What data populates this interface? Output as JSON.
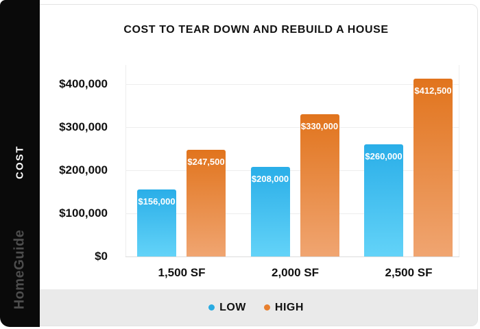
{
  "sidebar": {
    "axis_label": "COST",
    "brand": "HomeGuide"
  },
  "chart_data": {
    "type": "bar",
    "title": "COST TO TEAR DOWN AND REBUILD A HOUSE",
    "categories": [
      "1,500 SF",
      "2,000 SF",
      "2,500 SF"
    ],
    "series": [
      {
        "name": "LOW",
        "values": [
          156000,
          208000,
          260000
        ],
        "value_labels": [
          "$156,000",
          "$208,000",
          "$260,000"
        ],
        "color_top": "#2aaee8",
        "color_bottom": "#63d3f8",
        "legend_color": "#29abe2"
      },
      {
        "name": "HIGH",
        "values": [
          247500,
          330000,
          412500
        ],
        "value_labels": [
          "$247,500",
          "$330,000",
          "$412,500"
        ],
        "color_top": "#e1741d",
        "color_bottom": "#f0a571",
        "legend_color": "#e8802f"
      }
    ],
    "yticks": [
      {
        "value": 400000,
        "label": "$400,000"
      },
      {
        "value": 300000,
        "label": "$300,000"
      },
      {
        "value": 200000,
        "label": "$200,000"
      },
      {
        "value": 100000,
        "label": "$100,000"
      },
      {
        "value": 0,
        "label": "$0"
      }
    ],
    "ylabel": "COST",
    "ylim": [
      0,
      444000
    ],
    "grid": true,
    "legend_position": "bottom"
  }
}
